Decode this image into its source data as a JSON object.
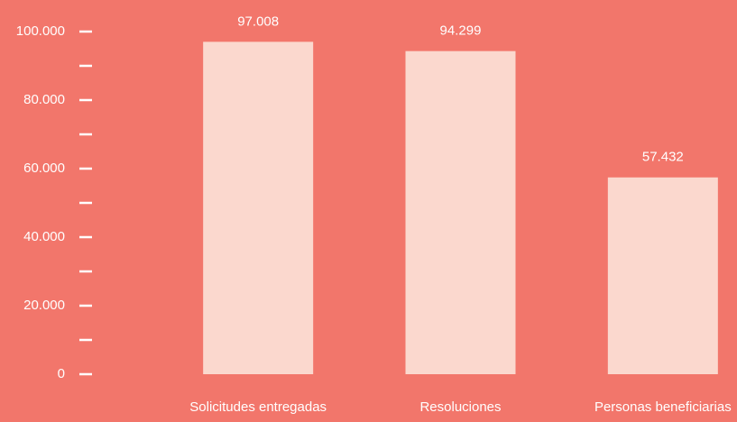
{
  "chart_data": {
    "type": "bar",
    "categories": [
      "Solicitudes entregadas",
      "Resoluciones",
      "Personas beneficiarias"
    ],
    "values": [
      97008,
      94299,
      57432
    ],
    "value_labels": [
      "97.008",
      "94.299",
      "57.432"
    ],
    "color": "#fbd8ce",
    "ylim": [
      0,
      100000
    ],
    "yticks": [
      {
        "value": 0,
        "label": "0"
      },
      {
        "value": 20000,
        "label": "20.000"
      },
      {
        "value": 40000,
        "label": "40.000"
      },
      {
        "value": 60000,
        "label": "60.000"
      },
      {
        "value": 80000,
        "label": "80.000"
      },
      {
        "value": 100000,
        "label": "100.000"
      }
    ],
    "minor_yticks": [
      10000,
      30000,
      50000,
      70000,
      90000
    ],
    "grid": false
  }
}
